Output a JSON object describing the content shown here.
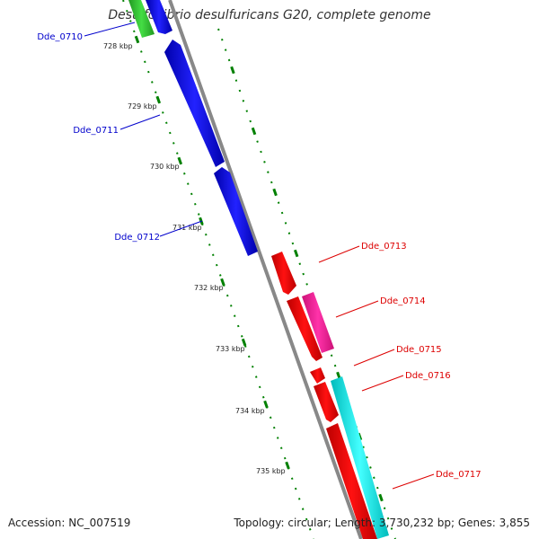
{
  "title": "Desulfovibrio desulfuricans G20, complete genome",
  "footer": {
    "accession": "Accession: NC_007519",
    "summary": "Topology: circular; Length: 3,730,232 bp; Genes: 3,855"
  },
  "colors": {
    "forward_strand": "#0000ff",
    "reverse_strand": "#ff0000",
    "backbone": "#888888",
    "tick": "#008000",
    "pink_gene": "#ff3399",
    "cyan_gene": "#00ffff",
    "green_gene": "#33cc33"
  },
  "kbp_labels": [
    "728 kbp",
    "729 kbp",
    "730 kbp",
    "731 kbp",
    "732 kbp",
    "733 kbp",
    "734 kbp",
    "735 kbp"
  ],
  "genes_left": [
    "Dde_0710",
    "Dde_0711",
    "Dde_0712"
  ],
  "genes_right": [
    "Dde_0713",
    "Dde_0714",
    "Dde_0715",
    "Dde_0716",
    "Dde_0717"
  ]
}
